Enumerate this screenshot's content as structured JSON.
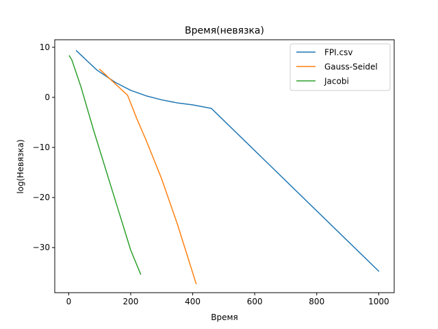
{
  "chart_data": {
    "type": "line",
    "title": "Время(невязка)",
    "xlabel": "Время",
    "ylabel": "log(Невязка)",
    "xlim": [
      -45,
      1050
    ],
    "ylim": [
      -39,
      11.5
    ],
    "xticks": [
      0,
      200,
      400,
      600,
      800,
      1000
    ],
    "yticks": [
      10,
      0,
      -10,
      -20,
      -30
    ],
    "xtick_labels": [
      "0",
      "200",
      "400",
      "600",
      "800",
      "1000"
    ],
    "ytick_labels": [
      "10",
      "0",
      "−10",
      "−20",
      "−30"
    ],
    "legend": {
      "position": "top-right"
    },
    "grid": false,
    "series": [
      {
        "name": "FPI.csv",
        "color": "#1f77b4",
        "points": [
          [
            25,
            9.3
          ],
          [
            90,
            5.5
          ],
          [
            150,
            3.0
          ],
          [
            200,
            1.4
          ],
          [
            250,
            0.3
          ],
          [
            300,
            -0.5
          ],
          [
            350,
            -1.1
          ],
          [
            400,
            -1.5
          ],
          [
            460,
            -2.2
          ],
          [
            1000,
            -34.7
          ]
        ]
      },
      {
        "name": "Gauss-Seidel",
        "color": "#ff7f0e",
        "points": [
          [
            100,
            5.6
          ],
          [
            190,
            0.4
          ],
          [
            220,
            -4.3
          ],
          [
            250,
            -8.6
          ],
          [
            300,
            -16.3
          ],
          [
            350,
            -25.2
          ],
          [
            411,
            -37.2
          ]
        ]
      },
      {
        "name": "Jacobi",
        "color": "#2ca02c",
        "points": [
          [
            2,
            8.3
          ],
          [
            10,
            7.5
          ],
          [
            40,
            2.0
          ],
          [
            80,
            -6.5
          ],
          [
            120,
            -14.5
          ],
          [
            160,
            -22.5
          ],
          [
            200,
            -30.5
          ],
          [
            232,
            -35.3
          ]
        ]
      }
    ]
  }
}
